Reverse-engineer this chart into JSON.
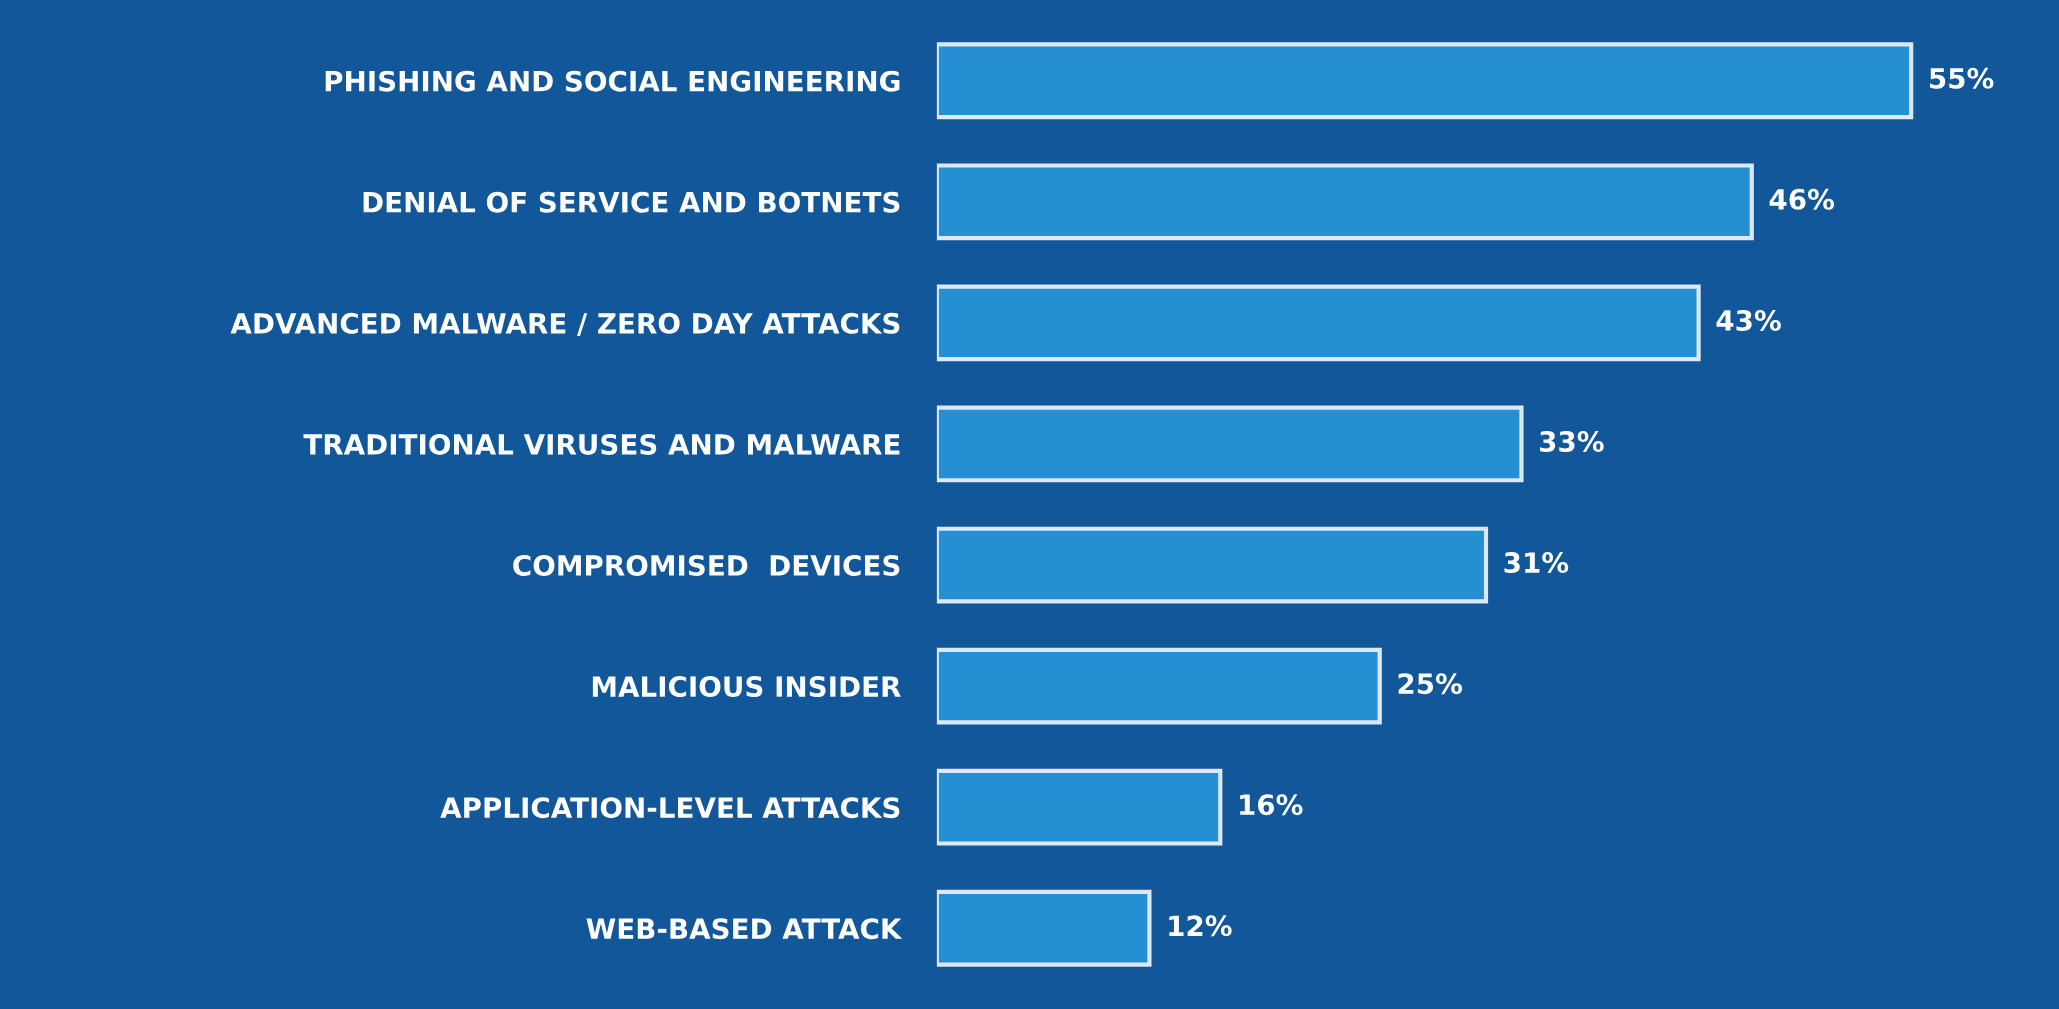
{
  "chart_data": {
    "type": "bar",
    "orientation": "horizontal",
    "categories": [
      "PHISHING AND SOCIAL ENGINEERING",
      "DENIAL OF SERVICE AND BOTNETS",
      "ADVANCED MALWARE / ZERO DAY ATTACKS",
      "TRADITIONAL VIRUSES AND MALWARE",
      "COMPROMISED  DEVICES",
      "MALICIOUS INSIDER",
      "APPLICATION-LEVEL ATTACKS",
      "WEB-BASED ATTACK"
    ],
    "values": [
      55,
      46,
      43,
      33,
      31,
      25,
      16,
      12
    ],
    "value_labels": [
      "55%",
      "46%",
      "43%",
      "33%",
      "31%",
      "25%",
      "16%",
      "12%"
    ],
    "color": "#2490d3",
    "tick_labels": "y",
    "grid": false,
    "legend": false
  }
}
